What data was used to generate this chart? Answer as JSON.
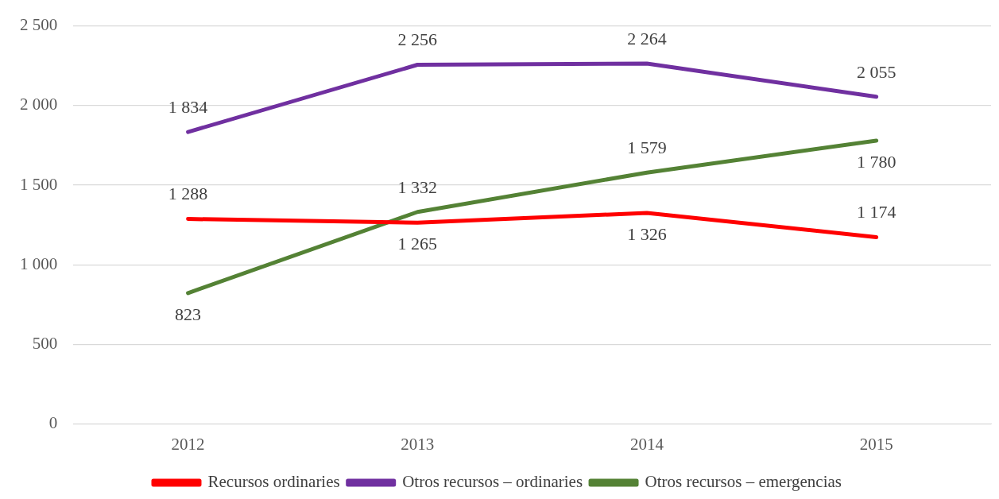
{
  "chart_data": {
    "type": "line",
    "categories": [
      "2012",
      "2013",
      "2014",
      "2015"
    ],
    "series": [
      {
        "name": "Recursos ordinaries",
        "color": "#ff0000",
        "values": [
          1288,
          1265,
          1326,
          1174
        ],
        "value_labels": [
          "1 288",
          "1 265",
          "1 326",
          "1 174"
        ]
      },
      {
        "name": "Otros recursos – ordinaries",
        "color": "#7030a0",
        "values": [
          1834,
          2256,
          2264,
          2055
        ],
        "value_labels": [
          "1 834",
          "2 256",
          "2 264",
          "2 055"
        ]
      },
      {
        "name": "Otros recursos – emergencias",
        "color": "#548235",
        "values": [
          823,
          1332,
          1579,
          1780
        ],
        "value_labels": [
          "823",
          "1 332",
          "1 579",
          "1 780"
        ]
      }
    ],
    "ylim": [
      0,
      2500
    ],
    "yticks": [
      {
        "value": 0,
        "label": "0"
      },
      {
        "value": 500,
        "label": "500"
      },
      {
        "value": 1000,
        "label": "1 000"
      },
      {
        "value": 1500,
        "label": "1 500"
      },
      {
        "value": 2000,
        "label": "2 000"
      },
      {
        "value": 2500,
        "label": "2 500"
      }
    ],
    "grid": "y",
    "legend": "bottom",
    "marker": "none",
    "line_style": "solid"
  }
}
